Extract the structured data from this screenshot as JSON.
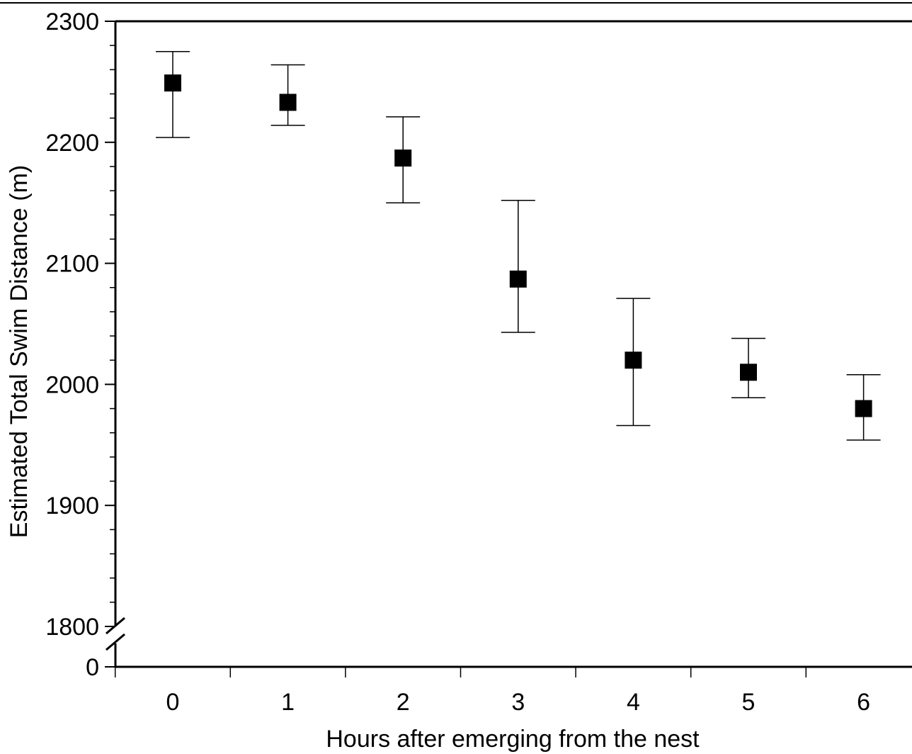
{
  "chart_data": {
    "type": "scatter",
    "xlabel": "Hours after emerging from the nest",
    "ylabel": "Estimated Total Swim Distance (m)",
    "x_ticks": [
      "0",
      "1",
      "2",
      "3",
      "4",
      "5",
      "6"
    ],
    "y_ticks": [
      "2300",
      "2200",
      "2100",
      "2000",
      "1900",
      "1800"
    ],
    "y_break_label": "0",
    "ylim": [
      1800,
      2300
    ],
    "y_axis_break": true,
    "grid": false,
    "marker": "filled-square",
    "marker_color": "#000000",
    "points": [
      {
        "x": 0,
        "y": 2249,
        "err_low": 2204,
        "err_high": 2275
      },
      {
        "x": 1,
        "y": 2233,
        "err_low": 2214,
        "err_high": 2264
      },
      {
        "x": 2,
        "y": 2187,
        "err_low": 2150,
        "err_high": 2221
      },
      {
        "x": 3,
        "y": 2087,
        "err_low": 2043,
        "err_high": 2152
      },
      {
        "x": 4,
        "y": 2020,
        "err_low": 1966,
        "err_high": 2071
      },
      {
        "x": 5,
        "y": 2010,
        "err_low": 1989,
        "err_high": 2038
      },
      {
        "x": 6,
        "y": 1980,
        "err_low": 1954,
        "err_high": 2008
      }
    ]
  }
}
